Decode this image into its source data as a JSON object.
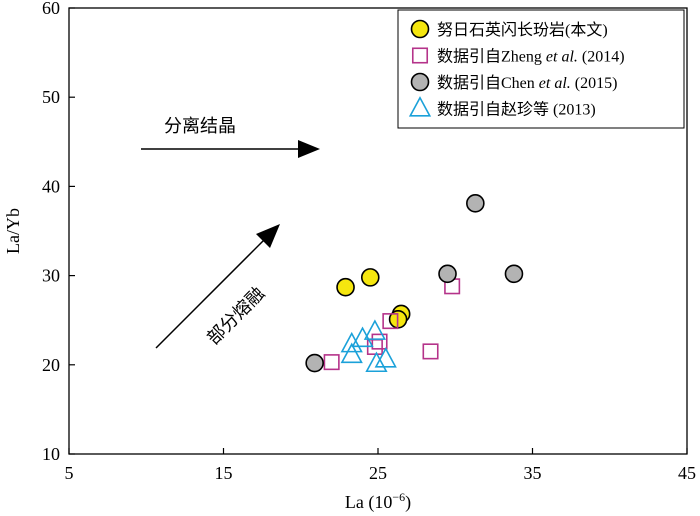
{
  "chart_data": {
    "type": "scatter",
    "xlabel": "La (10⁻⁶)",
    "ylabel": "La/Yb",
    "xlim": [
      5,
      45
    ],
    "ylim": [
      10,
      60
    ],
    "x_ticks": [
      5,
      15,
      25,
      35,
      45
    ],
    "y_ticks": [
      10,
      20,
      30,
      40,
      50,
      60
    ],
    "grid": false,
    "legend_position": "top-right",
    "series": [
      {
        "name": "努日石英闪长玢岩(本文)",
        "marker": "circle",
        "fill": "#f5e60f",
        "stroke": "#000000",
        "points": [
          [
            22.9,
            28.7
          ],
          [
            24.5,
            29.8
          ],
          [
            26.5,
            25.7
          ],
          [
            26.3,
            25.1
          ]
        ]
      },
      {
        "name": "数据引自Zheng et al. (2014)",
        "marker": "square",
        "fill": "none",
        "stroke": "#b5338a",
        "points": [
          [
            22.0,
            20.3
          ],
          [
            24.8,
            22.0
          ],
          [
            25.1,
            22.6
          ],
          [
            25.8,
            24.9
          ],
          [
            28.4,
            21.5
          ],
          [
            29.8,
            28.8
          ]
        ]
      },
      {
        "name": "数据引自Chen et al. (2015)",
        "marker": "circle",
        "fill": "#b3b3b3",
        "stroke": "#000000",
        "points": [
          [
            20.9,
            20.2
          ],
          [
            29.5,
            30.2
          ],
          [
            31.3,
            38.1
          ],
          [
            33.8,
            30.2
          ]
        ]
      },
      {
        "name": "数据引自赵珍等 (2013)",
        "marker": "triangle",
        "fill": "none",
        "stroke": "#1ba1d9",
        "points": [
          [
            23.3,
            22.3
          ],
          [
            23.3,
            21.1
          ],
          [
            24.0,
            22.9
          ],
          [
            24.8,
            23.7
          ],
          [
            24.9,
            20.1
          ],
          [
            25.5,
            20.6
          ]
        ]
      }
    ],
    "annotations": [
      {
        "text": "分离结晶",
        "arrow": "horizontal"
      },
      {
        "text": "部分熔融",
        "arrow": "diagonal"
      }
    ]
  }
}
